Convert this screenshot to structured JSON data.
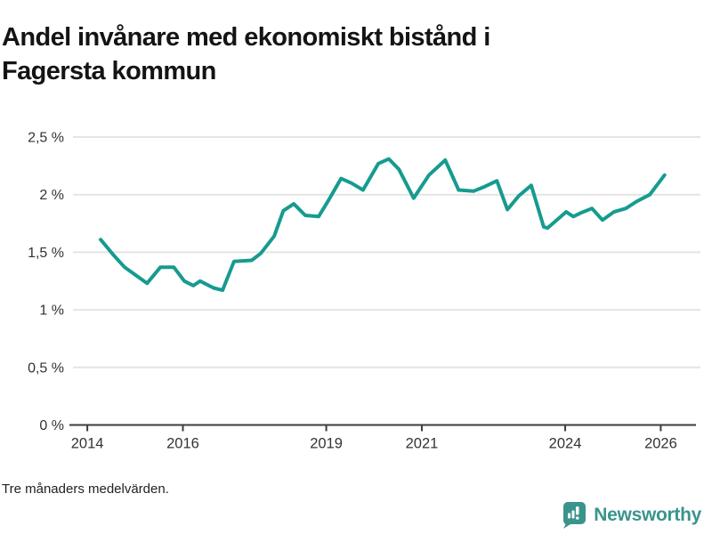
{
  "page": {
    "background": "#ffffff"
  },
  "header": {
    "title": "Andel invånare med ekonomiskt bistånd i Fagersta kommun"
  },
  "chart_data": {
    "type": "line",
    "title": "Andel invånare med ekonomiskt bistånd i Fagersta kommun",
    "note": "Tre månaders medelvärden.",
    "unit": "%",
    "decimal_separator": ",",
    "grid": "horizontal",
    "legend": "none",
    "line_color": "#169b8f",
    "grid_color": "#e4e4e4",
    "axis_color": "#3d3d3d",
    "label_color": "#333333",
    "xlim": [
      2013.7,
      2026.83
    ],
    "ylim": [
      0,
      2.5
    ],
    "x_ticks": [
      {
        "value": 2014,
        "label": "2014"
      },
      {
        "value": 2016,
        "label": "2016"
      },
      {
        "value": 2019,
        "label": "2019"
      },
      {
        "value": 2021,
        "label": "2021"
      },
      {
        "value": 2024,
        "label": "2024"
      },
      {
        "value": 2026,
        "label": "2026"
      }
    ],
    "y_ticks": [
      {
        "value": 0,
        "label": "0 %"
      },
      {
        "value": 0.5,
        "label": "0,5 %"
      },
      {
        "value": 1,
        "label": "1 %"
      },
      {
        "value": 1.5,
        "label": "1,5 %"
      },
      {
        "value": 2,
        "label": "2 %"
      },
      {
        "value": 2.5,
        "label": "2,5 %"
      }
    ],
    "x": [
      2014.28,
      2014.56,
      2014.78,
      2015.25,
      2015.53,
      2015.81,
      2016.03,
      2016.22,
      2016.36,
      2016.64,
      2016.83,
      2017.07,
      2017.44,
      2017.63,
      2017.91,
      2018.1,
      2018.32,
      2018.56,
      2018.84,
      2019.06,
      2019.31,
      2019.53,
      2019.77,
      2020.09,
      2020.31,
      2020.52,
      2020.83,
      2021.15,
      2021.49,
      2021.77,
      2022.08,
      2022.32,
      2022.57,
      2022.79,
      2023.03,
      2023.29,
      2023.55,
      2023.63,
      2024.02,
      2024.17,
      2024.32,
      2024.56,
      2024.78,
      2025.02,
      2025.27,
      2025.49,
      2025.77,
      2026.08
    ],
    "values": [
      1.61,
      1.47,
      1.37,
      1.23,
      1.37,
      1.37,
      1.25,
      1.21,
      1.25,
      1.19,
      1.17,
      1.42,
      1.43,
      1.49,
      1.64,
      1.86,
      1.92,
      1.82,
      1.81,
      1.96,
      2.14,
      2.1,
      2.04,
      2.27,
      2.31,
      2.22,
      1.97,
      2.17,
      2.3,
      2.04,
      2.03,
      2.07,
      2.12,
      1.87,
      1.99,
      2.08,
      1.72,
      1.71,
      1.85,
      1.81,
      1.84,
      1.88,
      1.78,
      1.85,
      1.88,
      1.94,
      2.0,
      2.17
    ]
  },
  "footer": {
    "note": "Tre månaders medelvärden.",
    "brand": {
      "name": "Newsworthy",
      "icon": "newsworthy-speech-bubble-bar-chart-icon",
      "color": "#3a948c"
    }
  }
}
